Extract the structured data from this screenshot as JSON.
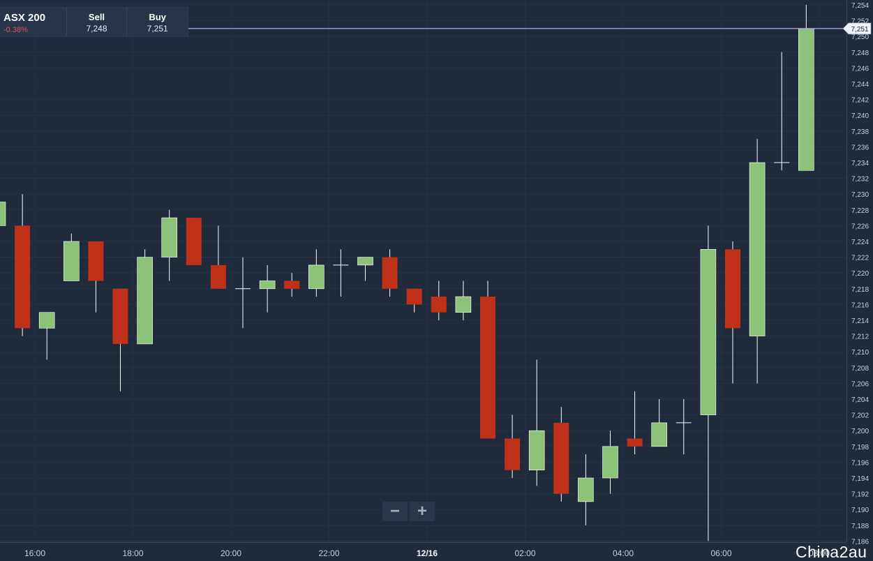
{
  "ticker": {
    "instrument": "ASX 200",
    "change": "-0.38%",
    "sell_label": "Sell",
    "sell_value": "7,248",
    "buy_label": "Buy",
    "buy_value": "7,251"
  },
  "zoom": {
    "out_label": "−",
    "in_label": "+"
  },
  "watermark": "China2au",
  "colors": {
    "background": "#1f2a3a",
    "up": "#8dc379",
    "down": "#c0311a",
    "price_line": "#b9a9e6"
  },
  "chart_data": {
    "type": "candlestick",
    "title": "",
    "ylim": [
      7185,
      7255
    ],
    "grid": true,
    "y_ticks": [
      "7,186",
      "7,188",
      "7,190",
      "7,192",
      "7,194",
      "7,196",
      "7,198",
      "7,200",
      "7,202",
      "7,204",
      "7,206",
      "7,208",
      "7,210",
      "7,212",
      "7,214",
      "7,216",
      "7,218",
      "7,220",
      "7,222",
      "7,224",
      "7,226",
      "7,228",
      "7,230",
      "7,232",
      "7,234",
      "7,236",
      "7,238",
      "7,240",
      "7,242",
      "7,244",
      "7,246",
      "7,248",
      "7,250",
      "7,252",
      "7,254"
    ],
    "x_ticks": [
      "16:00",
      "18:00",
      "20:00",
      "22:00",
      "12/16",
      "02:00",
      "04:00",
      "06:00",
      "08:00"
    ],
    "current_price": {
      "value": 7251,
      "label": "7,251"
    },
    "series": [
      {
        "o": 7226,
        "h": 7229,
        "l": 7226,
        "c": 7229
      },
      {
        "o": 7226,
        "h": 7230,
        "l": 7212,
        "c": 7213
      },
      {
        "o": 7213,
        "h": 7215,
        "l": 7209,
        "c": 7215
      },
      {
        "o": 7219,
        "h": 7225,
        "l": 7219,
        "c": 7224
      },
      {
        "o": 7224,
        "h": 7224,
        "l": 7215,
        "c": 7219
      },
      {
        "o": 7218,
        "h": 7218,
        "l": 7205,
        "c": 7211
      },
      {
        "o": 7211,
        "h": 7223,
        "l": 7211,
        "c": 7222
      },
      {
        "o": 7222,
        "h": 7228,
        "l": 7219,
        "c": 7227
      },
      {
        "o": 7227,
        "h": 7227,
        "l": 7221,
        "c": 7221
      },
      {
        "o": 7221,
        "h": 7226,
        "l": 7218,
        "c": 7218
      },
      {
        "o": 7218,
        "h": 7222,
        "l": 7213,
        "c": 7218
      },
      {
        "o": 7218,
        "h": 7221,
        "l": 7215,
        "c": 7219
      },
      {
        "o": 7219,
        "h": 7220,
        "l": 7217,
        "c": 7218
      },
      {
        "o": 7218,
        "h": 7223,
        "l": 7217,
        "c": 7221
      },
      {
        "o": 7221,
        "h": 7223,
        "l": 7217,
        "c": 7221
      },
      {
        "o": 7221,
        "h": 7222,
        "l": 7219,
        "c": 7222
      },
      {
        "o": 7222,
        "h": 7223,
        "l": 7217,
        "c": 7218
      },
      {
        "o": 7218,
        "h": 7218,
        "l": 7215,
        "c": 7216
      },
      {
        "o": 7217,
        "h": 7219,
        "l": 7214,
        "c": 7215
      },
      {
        "o": 7215,
        "h": 7219,
        "l": 7214,
        "c": 7217
      },
      {
        "o": 7217,
        "h": 7219,
        "l": 7199,
        "c": 7199
      },
      {
        "o": 7199,
        "h": 7202,
        "l": 7194,
        "c": 7195
      },
      {
        "o": 7195,
        "h": 7209,
        "l": 7193,
        "c": 7200
      },
      {
        "o": 7201,
        "h": 7203,
        "l": 7191,
        "c": 7192
      },
      {
        "o": 7191,
        "h": 7197,
        "l": 7188,
        "c": 7194
      },
      {
        "o": 7194,
        "h": 7200,
        "l": 7192,
        "c": 7198
      },
      {
        "o": 7199,
        "h": 7205,
        "l": 7197,
        "c": 7198
      },
      {
        "o": 7198,
        "h": 7204,
        "l": 7198,
        "c": 7201
      },
      {
        "o": 7201,
        "h": 7204,
        "l": 7197,
        "c": 7201
      },
      {
        "o": 7202,
        "h": 7226,
        "l": 7186,
        "c": 7223
      },
      {
        "o": 7223,
        "h": 7224,
        "l": 7206,
        "c": 7213
      },
      {
        "o": 7212,
        "h": 7237,
        "l": 7206,
        "c": 7234
      },
      {
        "o": 7234,
        "h": 7248,
        "l": 7233,
        "c": 7234
      },
      {
        "o": 7233,
        "h": 7254,
        "l": 7233,
        "c": 7251
      }
    ]
  }
}
